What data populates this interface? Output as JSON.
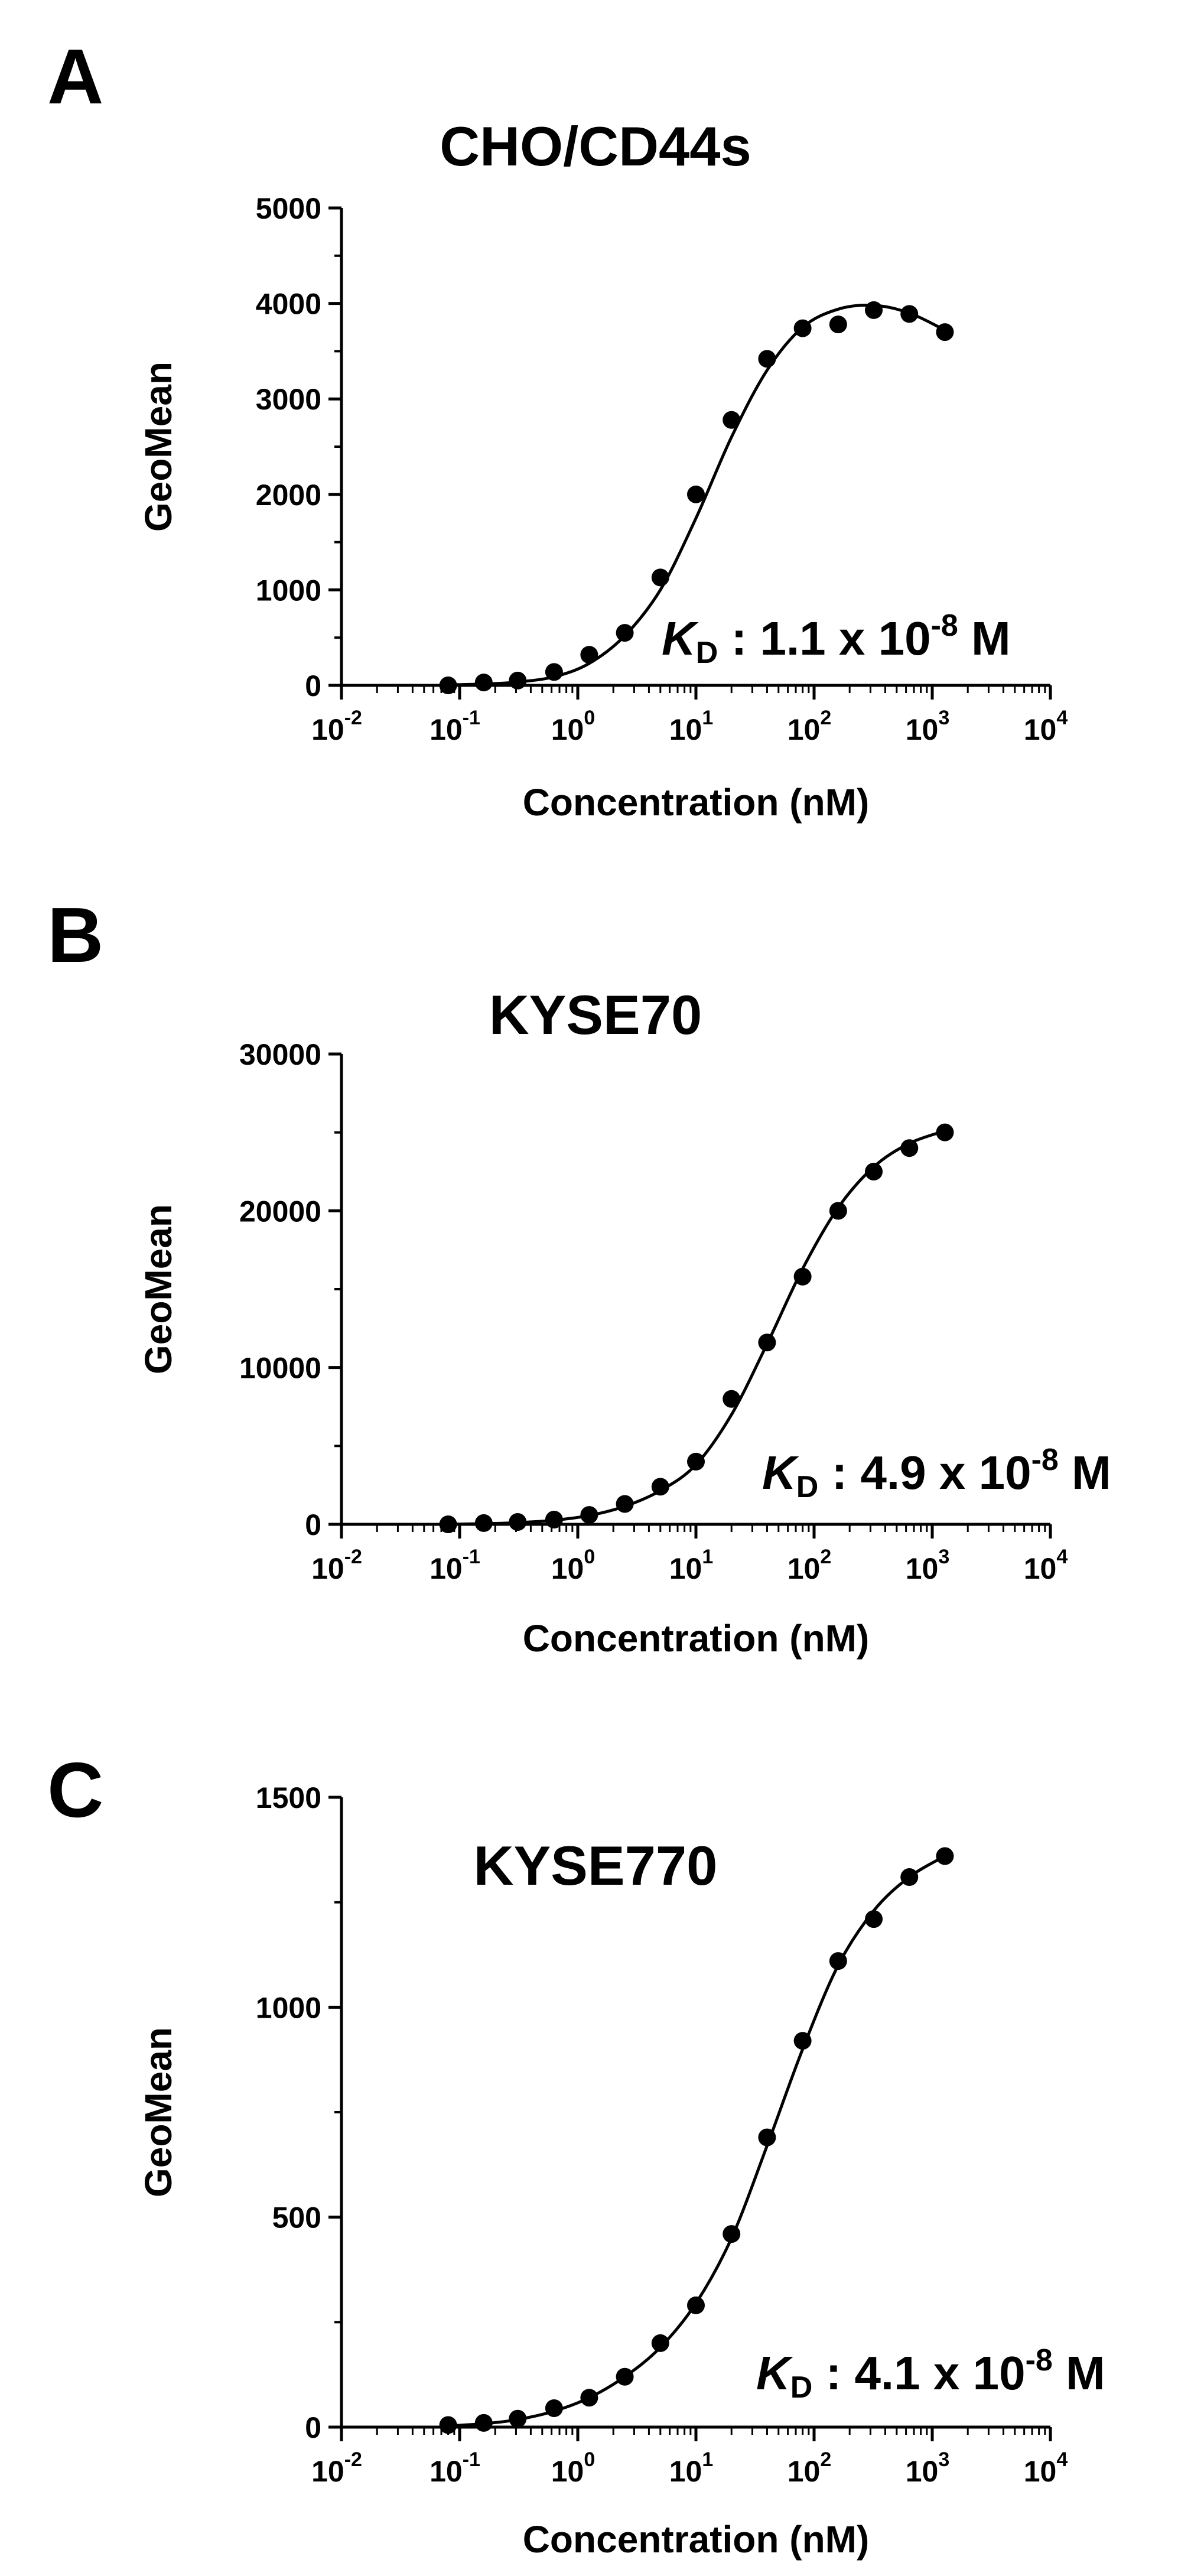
{
  "chart_data": [
    {
      "type": "scatter",
      "panel_label": "A",
      "title": "CHO/CD44s",
      "xlabel": "Concentration (nM)",
      "ylabel": "GeoMean",
      "xscale": "log",
      "xlim": [
        0.01,
        10000
      ],
      "ylim": [
        0,
        5000
      ],
      "xticks": [
        0.01,
        0.1,
        1,
        10,
        100,
        1000,
        10000
      ],
      "xtick_labels": [
        {
          "base": "10",
          "exp": "-2"
        },
        {
          "base": "10",
          "exp": "-1"
        },
        {
          "base": "10",
          "exp": "0"
        },
        {
          "base": "10",
          "exp": "1"
        },
        {
          "base": "10",
          "exp": "2"
        },
        {
          "base": "10",
          "exp": "3"
        },
        {
          "base": "10",
          "exp": "4"
        }
      ],
      "yticks": [
        0,
        1000,
        2000,
        3000,
        4000,
        5000
      ],
      "ytick_labels": [
        "0",
        "1000",
        "2000",
        "3000",
        "4000",
        "5000"
      ],
      "annotation": {
        "k": "K",
        "sub": "D",
        "value": " : 1.1 x 10",
        "exp": "-8",
        "unit": " M"
      },
      "series": [
        {
          "x": [
            0.08,
            0.16,
            0.31,
            0.63,
            1.25,
            2.5,
            5,
            10,
            20,
            40,
            80,
            160,
            320,
            640,
            1280
          ],
          "y": [
            0,
            30,
            50,
            140,
            320,
            550,
            1130,
            2000,
            2780,
            3420,
            3740,
            3780,
            3930,
            3890,
            3700
          ]
        }
      ],
      "fit_curve": {
        "x": [
          0.08,
          0.16,
          0.31,
          0.63,
          1.25,
          2.5,
          5,
          10,
          20,
          40,
          80,
          160,
          320,
          640,
          1280
        ],
        "y": [
          5,
          15,
          35,
          90,
          230,
          520,
          1000,
          1750,
          2600,
          3300,
          3750,
          3940,
          3980,
          3900,
          3720
        ]
      },
      "grid": false,
      "legend": "none"
    },
    {
      "type": "scatter",
      "panel_label": "B",
      "title": "KYSE70",
      "xlabel": "Concentration (nM)",
      "ylabel": "GeoMean",
      "xscale": "log",
      "xlim": [
        0.01,
        10000
      ],
      "ylim": [
        0,
        30000
      ],
      "xticks": [
        0.01,
        0.1,
        1,
        10,
        100,
        1000,
        10000
      ],
      "xtick_labels": [
        {
          "base": "10",
          "exp": "-2"
        },
        {
          "base": "10",
          "exp": "-1"
        },
        {
          "base": "10",
          "exp": "0"
        },
        {
          "base": "10",
          "exp": "1"
        },
        {
          "base": "10",
          "exp": "2"
        },
        {
          "base": "10",
          "exp": "3"
        },
        {
          "base": "10",
          "exp": "4"
        }
      ],
      "yticks": [
        0,
        10000,
        20000,
        30000
      ],
      "ytick_labels": [
        "0",
        "10000",
        "20000",
        "30000"
      ],
      "annotation": {
        "k": "K",
        "sub": "D",
        "value": " : 4.9 x 10",
        "exp": "-8",
        "unit": " M"
      },
      "series": [
        {
          "x": [
            0.08,
            0.16,
            0.31,
            0.63,
            1.25,
            2.5,
            5,
            10,
            20,
            40,
            80,
            160,
            320,
            640,
            1280
          ],
          "y": [
            0,
            80,
            150,
            300,
            600,
            1300,
            2400,
            4000,
            8000,
            11600,
            15800,
            20000,
            22500,
            24000,
            25000
          ]
        }
      ],
      "fit_curve": {
        "x": [
          0.08,
          0.16,
          0.31,
          0.63,
          1.25,
          2.5,
          5,
          10,
          20,
          40,
          80,
          160,
          320,
          640,
          1280
        ],
        "y": [
          10,
          40,
          110,
          260,
          560,
          1150,
          2150,
          3800,
          7000,
          11500,
          16300,
          20200,
          22800,
          24300,
          25100
        ]
      },
      "grid": false,
      "legend": "none"
    },
    {
      "type": "scatter",
      "panel_label": "C",
      "title": "KYSE770",
      "xlabel": "Concentration (nM)",
      "ylabel": "GeoMean",
      "xscale": "log",
      "xlim": [
        0.01,
        10000
      ],
      "ylim": [
        0,
        1500
      ],
      "xticks": [
        0.01,
        0.1,
        1,
        10,
        100,
        1000,
        10000
      ],
      "xtick_labels": [
        {
          "base": "10",
          "exp": "-2"
        },
        {
          "base": "10",
          "exp": "-1"
        },
        {
          "base": "10",
          "exp": "0"
        },
        {
          "base": "10",
          "exp": "1"
        },
        {
          "base": "10",
          "exp": "2"
        },
        {
          "base": "10",
          "exp": "3"
        },
        {
          "base": "10",
          "exp": "4"
        }
      ],
      "yticks": [
        0,
        500,
        1000,
        1500
      ],
      "ytick_labels": [
        "0",
        "500",
        "1000",
        "1500"
      ],
      "annotation": {
        "k": "K",
        "sub": "D",
        "value": " : 4.1 x 10",
        "exp": "-8",
        "unit": " M"
      },
      "series": [
        {
          "x": [
            0.08,
            0.16,
            0.31,
            0.63,
            1.25,
            2.5,
            5,
            10,
            20,
            40,
            80,
            160,
            320,
            640,
            1280
          ],
          "y": [
            5,
            10,
            20,
            45,
            70,
            120,
            200,
            290,
            460,
            690,
            920,
            1110,
            1210,
            1310,
            1360
          ]
        }
      ],
      "fit_curve": {
        "x": [
          0.08,
          0.16,
          0.31,
          0.63,
          1.25,
          2.5,
          5,
          10,
          20,
          40,
          80,
          160,
          320,
          640,
          1280
        ],
        "y": [
          3,
          8,
          18,
          38,
          70,
          120,
          190,
          295,
          450,
          670,
          900,
          1100,
          1230,
          1310,
          1360
        ]
      },
      "grid": false,
      "legend": "none"
    }
  ]
}
